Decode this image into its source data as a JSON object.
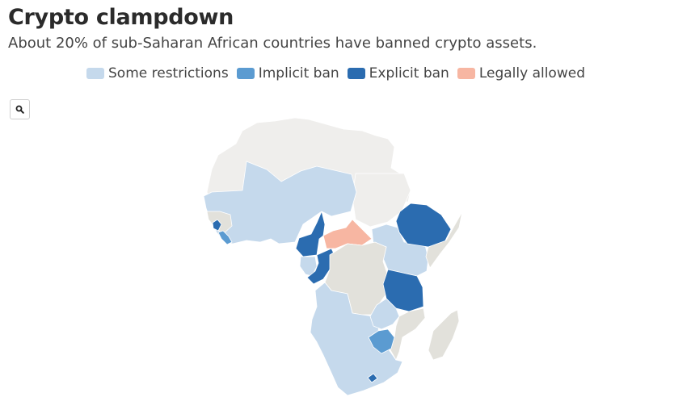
{
  "title": "Crypto clampdown",
  "subtitle": "About 20% of sub-Saharan African countries have banned crypto assets.",
  "legend": [
    {
      "label": "Some restrictions",
      "color": "#c5d9ec"
    },
    {
      "label": "Implicit ban",
      "color": "#5b9bd1"
    },
    {
      "label": "Explicit ban",
      "color": "#2b6cb0"
    },
    {
      "label": "Legally allowed",
      "color": "#f7b6a2"
    }
  ],
  "colors": {
    "background_land": "#efeeec",
    "no_data": "#e2e1db",
    "some_restrictions": "#c5d9ec",
    "implicit_ban": "#5b9bd1",
    "explicit_ban": "#2b6cb0",
    "legally_allowed": "#f7b6a2"
  },
  "zoom_control": {
    "icon": "search-icon"
  },
  "map_regions": {
    "north_africa": "background_land",
    "west_africa": "some_restrictions",
    "guinea_region": "no_data",
    "sierra_leone": "explicit_ban",
    "liberia": "implicit_ban",
    "nigeria_region": "some_restrictions",
    "cameroon": "explicit_ban",
    "congo": "explicit_ban",
    "gabon_coast": "some_restrictions",
    "central_african_republic": "legally_allowed",
    "sudan": "background_land",
    "south_sudan_uganda_kenya": "some_restrictions",
    "ethiopia": "explicit_ban",
    "somalia": "no_data",
    "dr_congo": "no_data",
    "tanzania": "explicit_ban",
    "angola_namibia_south": "some_restrictions",
    "zambia_malawi": "some_restrictions",
    "mozambique": "no_data",
    "zimbabwe": "implicit_ban",
    "lesotho": "explicit_ban",
    "madagascar": "no_data"
  }
}
